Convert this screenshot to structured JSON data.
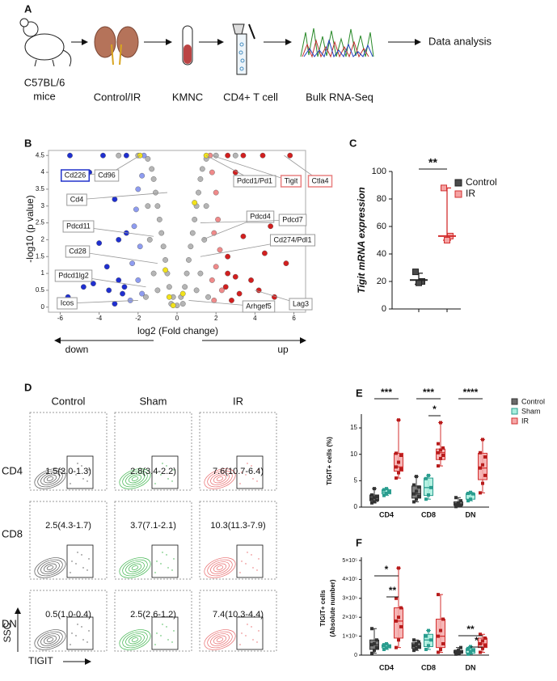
{
  "panel_a": {
    "label": "A",
    "steps": [
      [
        "C57BL/6",
        "mice"
      ],
      [
        "Control/IR"
      ],
      [
        "KMNC"
      ],
      [
        "CD4+ T cell"
      ],
      [
        "Bulk RNA-Seq"
      ]
    ],
    "final": "Data analysis"
  },
  "chart_data": [
    {
      "type": "volcano",
      "panel_label": "B",
      "x_label": "log2 (Fold change)",
      "y_label": "-log10 (p value)",
      "xlim": [
        -6.6,
        6.6
      ],
      "ylim": [
        -0.15,
        4.65
      ],
      "xticks": [
        -6,
        -4,
        -2,
        0,
        2,
        4,
        6
      ],
      "yticks": [
        0,
        0.5,
        1,
        1.5,
        2,
        2.5,
        3,
        3.5,
        4,
        4.5
      ],
      "series": [
        {
          "color": "#b5b5b5",
          "x": [
            0,
            0.2,
            -0.2,
            0.4,
            -0.4,
            0.5,
            -0.5,
            0.6,
            -0.6,
            0.7,
            -0.7,
            0.8,
            -0.8,
            0.9,
            -0.9,
            1.0,
            -1.0,
            1.1,
            -1.1,
            1.2,
            -1.2,
            1.3,
            -1.3,
            1.5,
            -1.5,
            2.0,
            -2.0,
            3.0,
            -3.0,
            1.2,
            -1.2,
            1.4,
            -1.4,
            1.0,
            -1.0,
            1.5,
            -1.5,
            0.3,
            -0.3,
            1.6,
            -1.6
          ],
          "values": [
            0.05,
            0.3,
            0.3,
            0.6,
            0.6,
            1.0,
            1.0,
            1.4,
            1.4,
            1.8,
            1.8,
            2.2,
            2.2,
            2.6,
            2.6,
            3.0,
            3.0,
            3.4,
            3.4,
            3.8,
            3.8,
            4.1,
            4.1,
            4.4,
            4.4,
            4.5,
            4.5,
            4.5,
            4.5,
            1.0,
            1.0,
            2.0,
            2.0,
            0.5,
            0.5,
            3.0,
            3.0,
            0.1,
            0.1,
            0.3,
            0.3
          ]
        },
        {
          "color": "#8e9cf0",
          "x": [
            -1.7,
            -1.8,
            -2.0,
            -2.1,
            -2.2,
            -1.9,
            -2.3,
            -2.0,
            -1.8,
            -2.4
          ],
          "values": [
            4.5,
            3.9,
            3.5,
            2.9,
            2.4,
            1.8,
            1.3,
            0.8,
            0.4,
            0.2
          ]
        },
        {
          "color": "#1f2fd0",
          "x": [
            -2.6,
            -3.8,
            -5.5,
            -4.5,
            -2.6,
            -3.2,
            -3.0,
            -4.0,
            -3.6,
            -5.2,
            -3.0,
            -4.3,
            -2.8,
            -3.5,
            -4.8,
            -5.6,
            -3.2,
            -2.7
          ],
          "values": [
            4.5,
            4.5,
            4.5,
            4.0,
            2.2,
            3.2,
            2.0,
            1.9,
            1.2,
            1.0,
            0.8,
            0.7,
            0.4,
            0.5,
            0.6,
            0.3,
            0.1,
            0.6
          ]
        },
        {
          "color": "#f08a8a",
          "x": [
            1.7,
            1.8,
            2.0,
            2.1,
            1.9,
            2.2,
            2.0,
            1.8,
            2.3,
            1.9
          ],
          "values": [
            4.5,
            4.0,
            3.4,
            2.6,
            2.2,
            1.7,
            1.2,
            0.8,
            0.5,
            0.2
          ]
        },
        {
          "color": "#d21f1f",
          "x": [
            2.6,
            3.4,
            4.4,
            5.8,
            3.0,
            4.8,
            3.4,
            4.5,
            2.6,
            5.6,
            3.0,
            3.8,
            2.5,
            3.2,
            4.2,
            5.0,
            2.8,
            2.6
          ],
          "values": [
            4.5,
            4.5,
            4.5,
            4.5,
            4.0,
            2.4,
            2.1,
            1.6,
            1.5,
            1.3,
            0.9,
            0.8,
            0.6,
            0.4,
            0.5,
            0.3,
            0.2,
            1.0
          ]
        },
        {
          "color": "#f2e21b",
          "x": [
            -1.9,
            1.5,
            0.9,
            -0.4,
            -0.2,
            0.3,
            -0.6
          ],
          "values": [
            4.5,
            4.5,
            3.1,
            0.3,
            0.05,
            0.4,
            1.1
          ]
        }
      ],
      "annotations": [
        {
          "label": "Cd226",
          "x": -3.0,
          "y": 4.0,
          "border": "#2233cc"
        },
        {
          "label": "Cd96",
          "x": -1.9,
          "y": 4.5,
          "border": "#9a9a9a"
        },
        {
          "label": "Cd4",
          "x": -0.5,
          "y": 3.4,
          "border": "#9a9a9a"
        },
        {
          "label": "Pdcd11",
          "x": -1.2,
          "y": 2.1,
          "border": "#9a9a9a"
        },
        {
          "label": "Cd28",
          "x": -1.0,
          "y": 1.3,
          "border": "#9a9a9a"
        },
        {
          "label": "Pdcd1lg2",
          "x": -1.6,
          "y": 0.6,
          "border": "#9a9a9a"
        },
        {
          "label": "Icos",
          "x": -2.0,
          "y": 0.2,
          "border": "#9a9a9a"
        },
        {
          "label": "Pdcd1/Pd1",
          "x": 1.5,
          "y": 4.5,
          "border": "#9a9a9a"
        },
        {
          "label": "Tigit",
          "x": 1.8,
          "y": 4.5,
          "border": "#e88080"
        },
        {
          "label": "Ctla4",
          "x": 5.5,
          "y": 4.5,
          "border": "#e88080"
        },
        {
          "label": "Pdcd4",
          "x": 1.3,
          "y": 2.0,
          "border": "#9a9a9a"
        },
        {
          "label": "Pdcd7",
          "x": 1.2,
          "y": 2.5,
          "border": "#9a9a9a"
        },
        {
          "label": "Cd274/Pdl1",
          "x": 1.2,
          "y": 1.5,
          "border": "#9a9a9a"
        },
        {
          "label": "Arhgef5",
          "x": 0.6,
          "y": 0.2,
          "border": "#9a9a9a"
        },
        {
          "label": "Lag3",
          "x": 4.0,
          "y": 0.5,
          "border": "#9a9a9a"
        }
      ],
      "arrow_labels": [
        "down",
        "up"
      ]
    },
    {
      "type": "dot",
      "panel_label": "C",
      "y_label": "Tigit mRNA expression",
      "ylim": [
        0,
        100
      ],
      "yticks": [
        0,
        20,
        40,
        60,
        80,
        100
      ],
      "legend": "top-right",
      "series": [
        {
          "name": "Control",
          "color": "#4a4a4a",
          "border": "#222222",
          "values": [
            27,
            20,
            19
          ],
          "center": 21,
          "low": 18,
          "high": 26
        },
        {
          "name": "IR",
          "color": "#f5a3a3",
          "border": "#d32f2f",
          "values": [
            88,
            53,
            50
          ],
          "center": 53,
          "low": 50,
          "high": 88
        }
      ],
      "significance": [
        "**"
      ]
    },
    {
      "type": "box",
      "panel_label": "E",
      "y_label": [
        "TIGIT+ cells (%)"
      ],
      "ylim": [
        0,
        17
      ],
      "yticks": [
        0,
        5,
        10,
        15
      ],
      "legend": "top-right",
      "categories": [
        "CD4",
        "CD8",
        "DN"
      ],
      "series": [
        {
          "name": "Control",
          "color": "#6b6b6b",
          "border": "#333333",
          "point": "#333333",
          "boxes": [
            {
              "min": 0.8,
              "q1": 1.2,
              "median": 1.8,
              "q3": 2.3,
              "max": 3.5,
              "points": [
                0.8,
                1.0,
                1.3,
                1.5,
                1.8,
                2.0,
                2.3,
                3.5
              ]
            },
            {
              "min": 1.0,
              "q1": 1.7,
              "median": 2.5,
              "q3": 4.0,
              "max": 5.8,
              "points": [
                1.0,
                1.5,
                2.0,
                2.5,
                3.0,
                3.8,
                4.2,
                5.8
              ]
            },
            {
              "min": 0.1,
              "q1": 0.3,
              "median": 0.5,
              "q3": 1.0,
              "max": 1.8,
              "points": [
                0.1,
                0.3,
                0.4,
                0.5,
                0.8,
                1.2,
                1.8
              ]
            }
          ]
        },
        {
          "name": "Sham",
          "color": "#a8eedd",
          "border": "#2a9d8f",
          "point": "#2a9d8f",
          "boxes": [
            {
              "min": 2.2,
              "q1": 2.5,
              "median": 2.8,
              "q3": 3.3,
              "max": 3.5,
              "points": [
                2.2,
                2.6,
                2.9,
                3.3,
                3.5
              ]
            },
            {
              "min": 1.5,
              "q1": 2.2,
              "median": 3.7,
              "q3": 5.5,
              "max": 6.0,
              "points": [
                1.5,
                2.3,
                3.7,
                5.4,
                6.0
              ]
            },
            {
              "min": 1.2,
              "q1": 1.5,
              "median": 2.5,
              "q3": 2.6,
              "max": 2.8,
              "points": [
                1.2,
                1.5,
                2.5,
                2.6,
                2.8
              ]
            }
          ]
        },
        {
          "name": "IR",
          "color": "#f5a9a9",
          "border": "#d32f2f",
          "point": "#b71c1c",
          "boxes": [
            {
              "min": 5.5,
              "q1": 6.8,
              "median": 7.6,
              "q3": 10.2,
              "max": 16.5,
              "points": [
                5.5,
                6.5,
                7.2,
                7.6,
                8.5,
                9.8,
                10.2,
                16.5
              ]
            },
            {
              "min": 7.8,
              "q1": 9.0,
              "median": 10.3,
              "q3": 11.0,
              "max": 16.0,
              "points": [
                7.8,
                9.2,
                9.8,
                10.3,
                10.8,
                11.2,
                12.0,
                16.0
              ]
            },
            {
              "min": 2.7,
              "q1": 5.2,
              "median": 7.4,
              "q3": 10.2,
              "max": 12.8,
              "points": [
                2.7,
                4.5,
                6.0,
                7.4,
                8.0,
                9.5,
                10.3,
                12.8
              ]
            }
          ]
        }
      ],
      "significance": [
        "***",
        "***",
        "*",
        "****"
      ]
    },
    {
      "type": "box",
      "panel_label": "F",
      "y_label": [
        "TIGIT+ cells",
        "(Absolute number)"
      ],
      "ylim": [
        0,
        500000
      ],
      "yticks": [
        0,
        {
          "value": 100000,
          "label": "1×10⁵"
        },
        {
          "value": 200000,
          "label": "2×10⁵"
        },
        {
          "value": 300000,
          "label": "3×10⁵"
        },
        {
          "value": 400000,
          "label": "4×10⁵"
        },
        {
          "value": 500000,
          "label": "5×10⁵"
        }
      ],
      "legend": false,
      "categories": [
        "CD4",
        "CD8",
        "DN"
      ],
      "series": [
        {
          "name": "Control",
          "color": "#6b6b6b",
          "border": "#333333",
          "point": "#333333",
          "boxes": [
            {
              "min": 10000,
              "q1": 30000,
              "median": 55000,
              "q3": 80000,
              "max": 140000,
              "points": [
                10000,
                25000,
                40000,
                55000,
                60000,
                80000,
                140000
              ]
            },
            {
              "min": 25000,
              "q1": 35000,
              "median": 50000,
              "q3": 65000,
              "max": 80000,
              "points": [
                25000,
                35000,
                45000,
                50000,
                60000,
                70000,
                80000
              ]
            },
            {
              "min": 5000,
              "q1": 10000,
              "median": 15000,
              "q3": 25000,
              "max": 40000,
              "points": [
                5000,
                10000,
                15000,
                20000,
                25000,
                40000
              ]
            }
          ]
        },
        {
          "name": "Sham",
          "color": "#a8eedd",
          "border": "#2a9d8f",
          "point": "#2a9d8f",
          "boxes": [
            {
              "min": 30000,
              "q1": 38000,
              "median": 45000,
              "q3": 55000,
              "max": 60000,
              "points": [
                30000,
                40000,
                45000,
                55000,
                60000
              ]
            },
            {
              "min": 30000,
              "q1": 45000,
              "median": 80000,
              "q3": 110000,
              "max": 130000,
              "points": [
                30000,
                50000,
                80000,
                100000,
                130000
              ]
            },
            {
              "min": 5000,
              "q1": 10000,
              "median": 25000,
              "q3": 35000,
              "max": 45000,
              "points": [
                5000,
                15000,
                25000,
                35000,
                45000
              ]
            }
          ]
        },
        {
          "name": "IR",
          "color": "#f5a9a9",
          "border": "#d32f2f",
          "point": "#b71c1c",
          "boxes": [
            {
              "min": 40000,
              "q1": 90000,
              "median": 180000,
              "q3": 250000,
              "max": 460000,
              "points": [
                40000,
                80000,
                150000,
                180000,
                200000,
                250000,
                300000,
                460000
              ]
            },
            {
              "min": 15000,
              "q1": 40000,
              "median": 100000,
              "q3": 190000,
              "max": 320000,
              "points": [
                15000,
                30000,
                60000,
                100000,
                130000,
                190000,
                320000
              ]
            },
            {
              "min": 15000,
              "q1": 40000,
              "median": 60000,
              "q3": 90000,
              "max": 110000,
              "points": [
                15000,
                35000,
                50000,
                60000,
                75000,
                90000,
                110000
              ]
            }
          ]
        }
      ],
      "significance": [
        "*",
        "**",
        "**",
        "*"
      ]
    }
  ],
  "panel_d": {
    "label": "D",
    "columns": [
      "Control",
      "Sham",
      "IR"
    ],
    "rows": [
      "CD4",
      "CD8",
      "DN"
    ],
    "cells": [
      [
        "1.5(2.0-1.3)",
        "2.8(3.4-2.2)",
        "7.6(10.7-6.4)"
      ],
      [
        "2.5(4.3-1.7)",
        "3.7(7.1-2.1)",
        "10.3(11.3-7.9)"
      ],
      [
        "0.5(1.0-0.4)",
        "2.5(2.6-1.2)",
        "7.4(10.3-4.4)"
      ]
    ],
    "colors": [
      "#555555",
      "#3cb44b",
      "#e8696b"
    ],
    "y_axis": "SSC",
    "x_axis": "TIGIT"
  }
}
